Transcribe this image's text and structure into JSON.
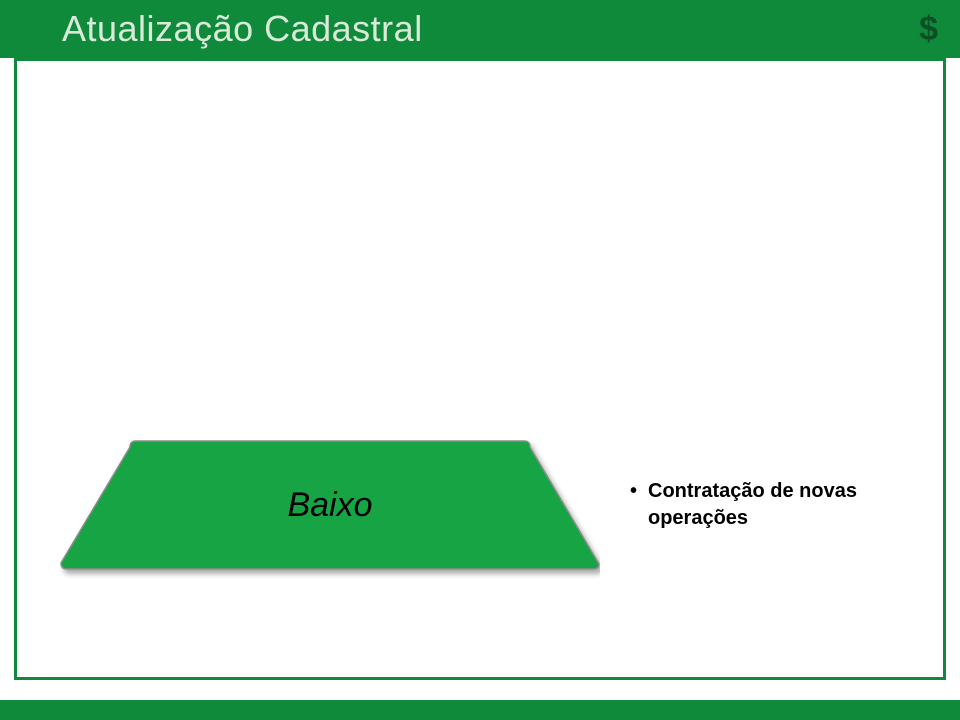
{
  "colors": {
    "header_bg": "#0f8a3b",
    "header_text": "#d9ead8",
    "icon_text": "#0d4f25",
    "frame_border": "#0f8a3b",
    "bottom_bar": "#0f8a3b",
    "trap_fill": "#18a444",
    "trap_border": "#8c8c8c",
    "trap_label": "#000000",
    "bullet_text": "#000000",
    "content_bg": "#ffffff"
  },
  "title": "Atualização Cadastral",
  "icon": "$",
  "trapezoid": {
    "label": "Baixo",
    "label_fontsize": 34,
    "label_italic": true,
    "top_width": 400,
    "bottom_width": 540,
    "height": 130,
    "corner_radius": 6,
    "border_width": 1.5
  },
  "bullets": {
    "fontsize": 20,
    "bold": true,
    "items": [
      "Contratação de novas operações"
    ]
  },
  "frame_border_width": 3,
  "title_fontsize": 36,
  "icon_fontsize": 34
}
